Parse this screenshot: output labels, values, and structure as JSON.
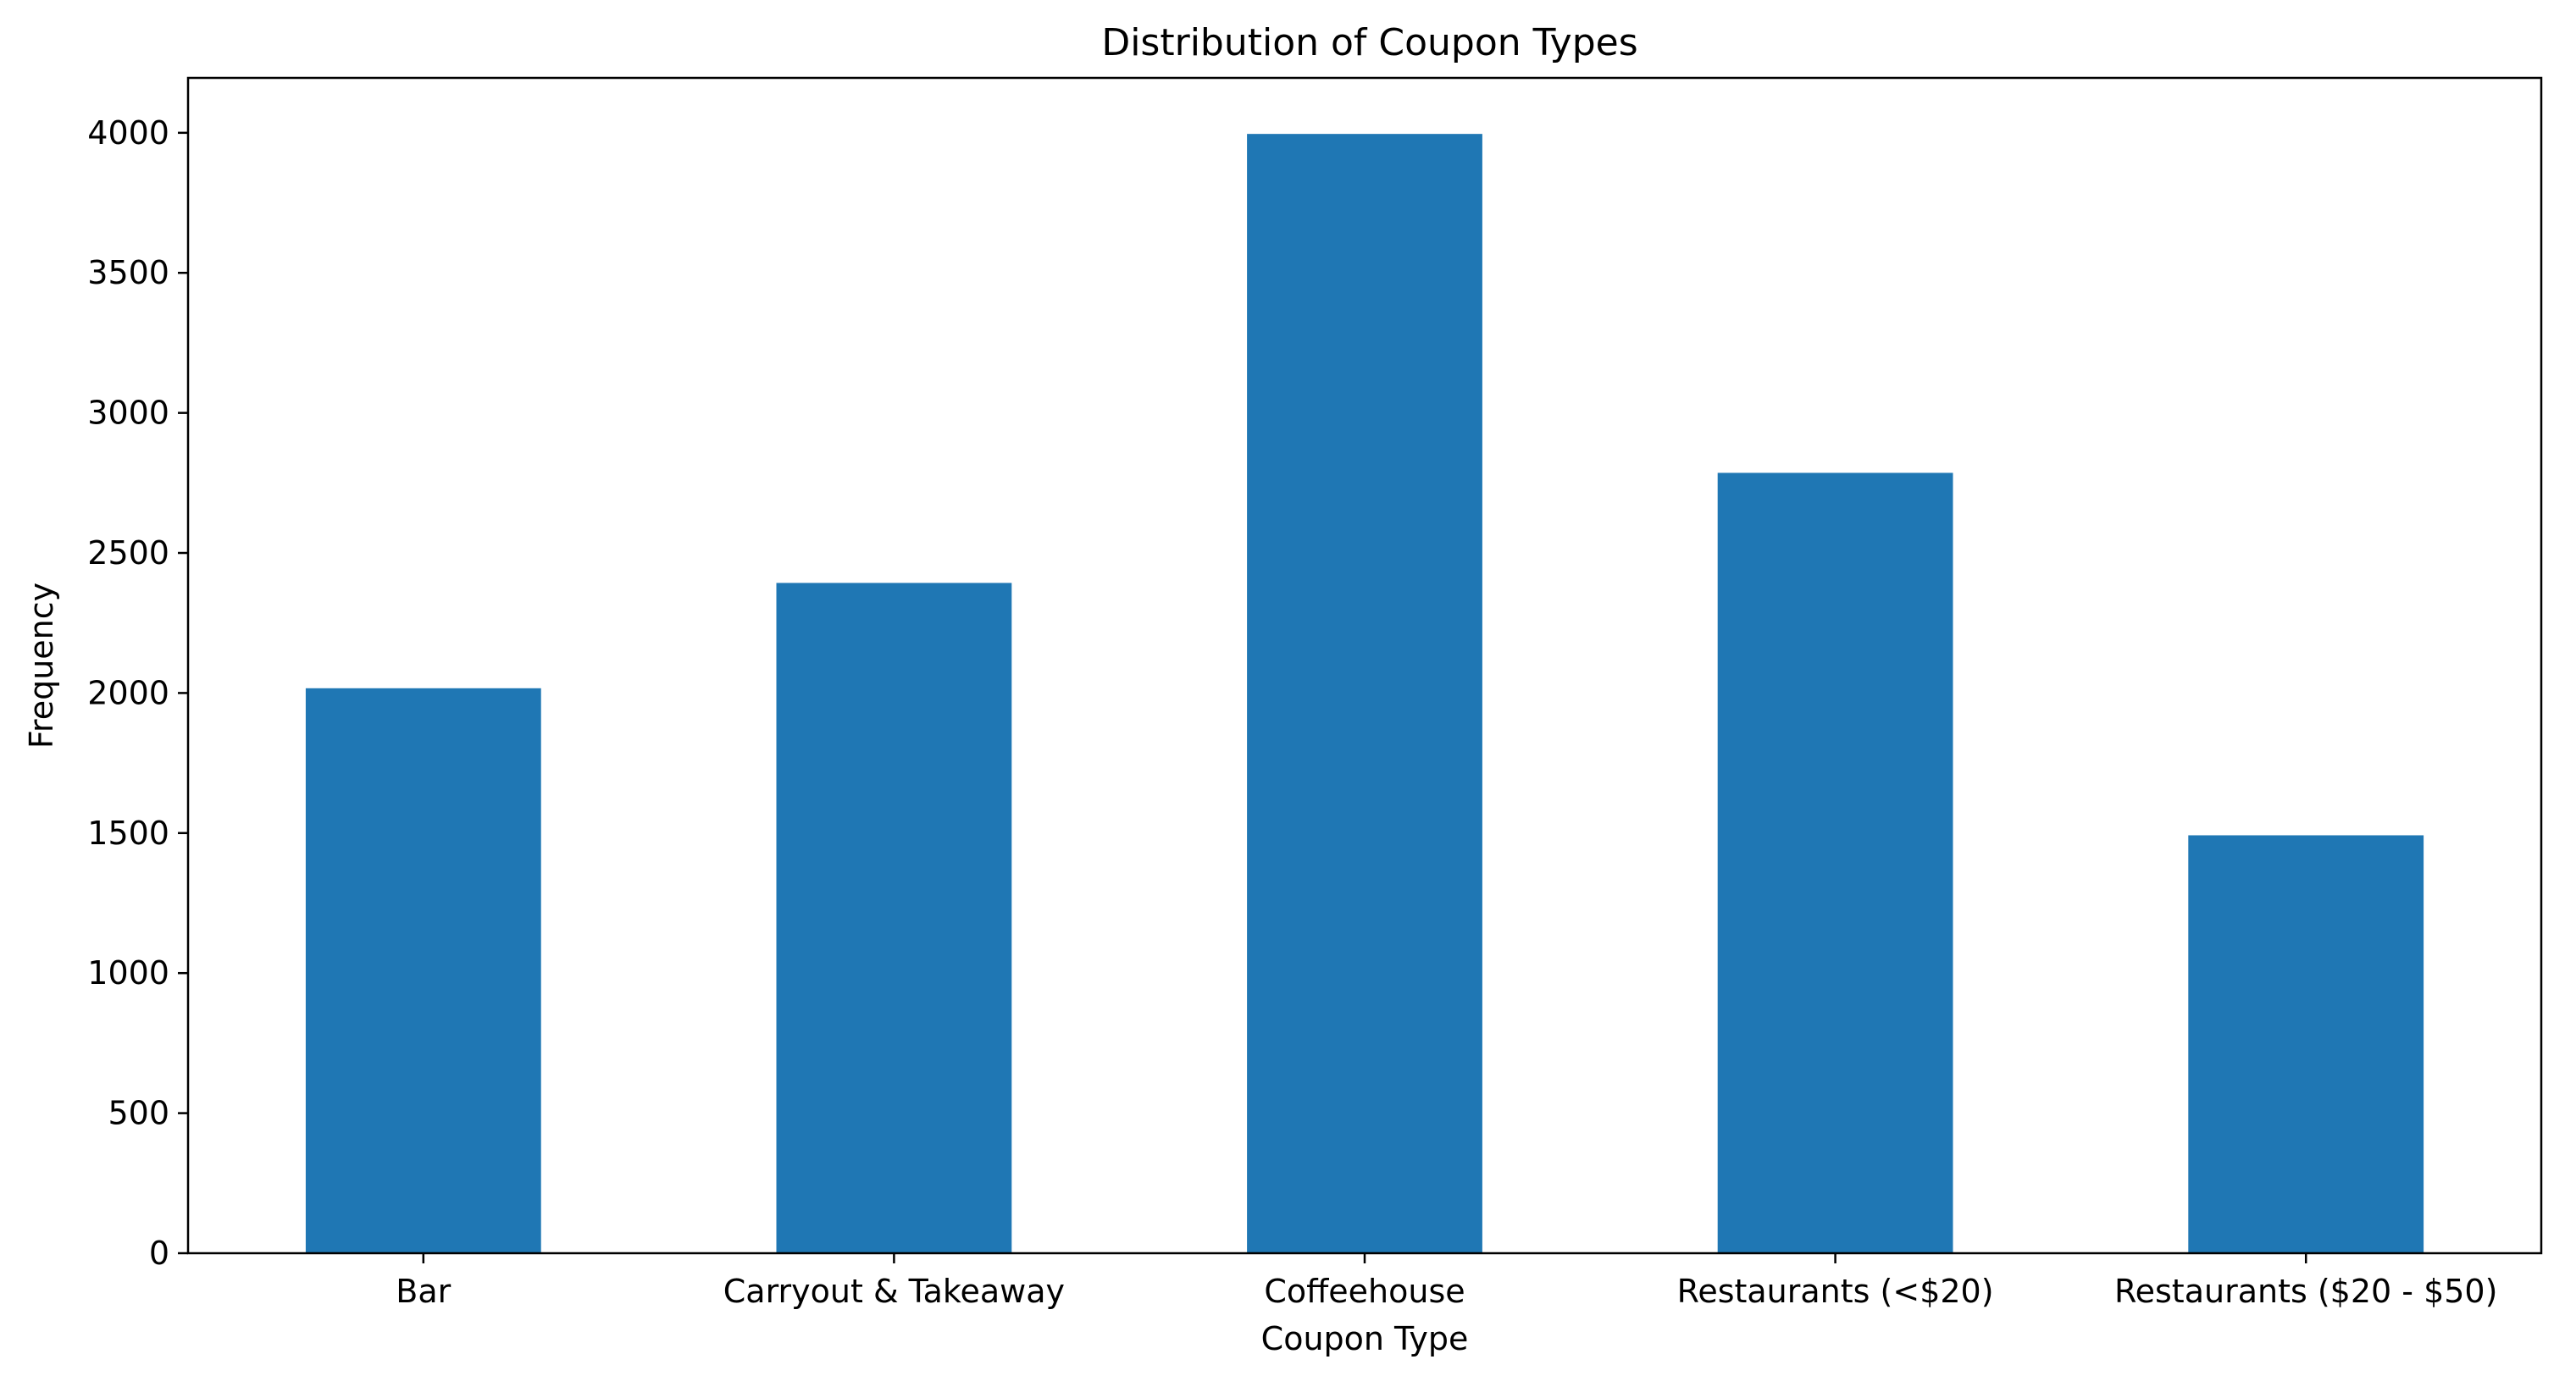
{
  "chart_data": {
    "type": "bar",
    "title": "Distribution of Coupon Types",
    "xlabel": "Coupon Type",
    "ylabel": "Frequency",
    "categories": [
      "Bar",
      "Carryout & Takeaway",
      "Coffeehouse",
      "Restaurants (<$20)",
      "Restaurants ($20 - $50)"
    ],
    "values": [
      2017,
      2393,
      3996,
      2786,
      1492
    ],
    "ylim": [
      0,
      4196
    ],
    "yticks": [
      0,
      500,
      1000,
      1500,
      2000,
      2500,
      3000,
      3500,
      4000
    ],
    "grid": false,
    "legend": "none",
    "colors": {
      "bar": "#1f77b4",
      "axis": "#000000",
      "background": "#ffffff"
    }
  }
}
